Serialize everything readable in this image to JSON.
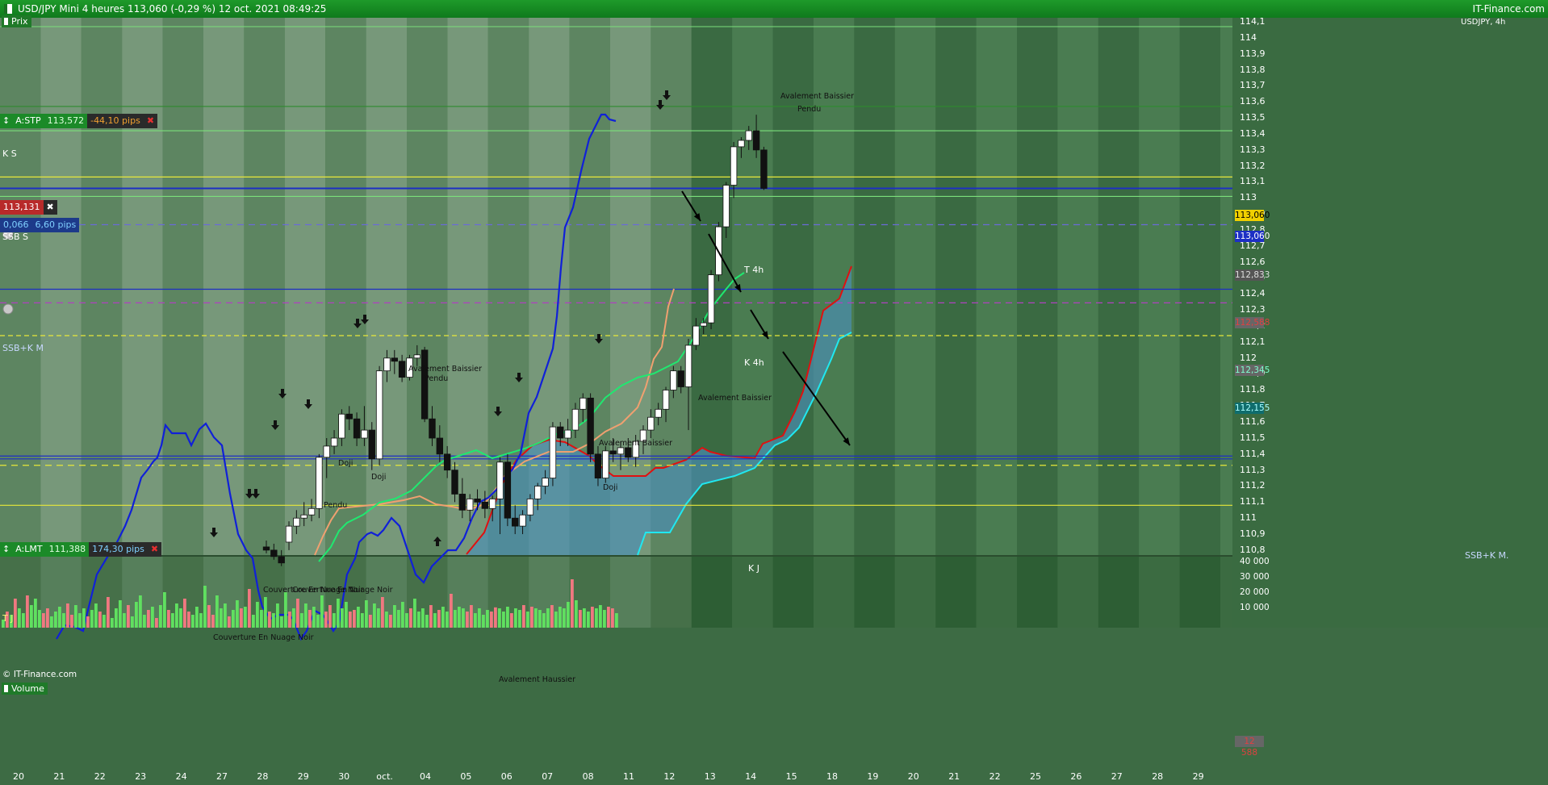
{
  "window": {
    "title": "USD/JPY Mini 4 heures 113,060 (-0,29 %) 12 oct. 2021 08:49:25",
    "brand": "IT-Finance.com",
    "symbol_tag": "USDJPY, 4h",
    "copyright": "© IT-Finance.com"
  },
  "panels": {
    "price": "Prix",
    "volume": "Volume"
  },
  "orders": {
    "stop": {
      "name": "A:STP",
      "price": "113,572",
      "pips": "-44,10 pips"
    },
    "current": {
      "price": "113,131",
      "spread": "0,066",
      "pips": "6,60 pips"
    },
    "limit": {
      "name": "A:LMT",
      "price": "111,388",
      "pips": "174,30 pips"
    }
  },
  "level_labels": {
    "ks": "K S",
    "ssbs": "SSB S",
    "ssbkm": "SSB+K M",
    "ssbkm_right": "SSB+K M.",
    "tj": "T J",
    "t4h": "T 4h",
    "k4h": "K 4h",
    "kj": "K J"
  },
  "patterns": {
    "p1": "Avalement Baissier",
    "p1b": "Pendu",
    "p2": "Avalement Baissier",
    "p2b": "Pendu",
    "p3": "Avalement Baissier",
    "p4": "Avalement Baissier",
    "p5": "Doji",
    "p6": "Doji",
    "p7": "Pendu",
    "p8": "Doji",
    "p9": "Couverture En Nuage Noir",
    "p10": "Couverture En Nuage Noir",
    "p11": "Couverture En Nuage Noir",
    "p12": "Avalement Haussier"
  },
  "price_axis": {
    "ticks": [
      "114,1",
      "114",
      "113,9",
      "113,8",
      "113,7",
      "113,6",
      "113,5",
      "113,4",
      "113,3",
      "113,2",
      "113,1",
      "113",
      "112,9",
      "112,8",
      "112,7",
      "112,6",
      "112,5",
      "112,4",
      "112,3",
      "112,2",
      "112,1",
      "112",
      "111,9",
      "111,8",
      "111,7",
      "111,6",
      "111,5",
      "111,4",
      "111,3",
      "111,2",
      "111,1",
      "111",
      "110,9",
      "110,8"
    ],
    "tags": {
      "last": "113,060",
      "bid": "113,060",
      "t4h": "112,833",
      "red": "112,588",
      "purple": "112,345",
      "cyan": "112,155"
    }
  },
  "volume_axis": {
    "ticks": [
      "40 000",
      "30 000",
      "20 000",
      "10 000"
    ],
    "tag": "12 588"
  },
  "x_axis": {
    "labels": [
      "20",
      "21",
      "22",
      "23",
      "24",
      "27",
      "28",
      "29",
      "30",
      "oct.",
      "04",
      "05",
      "06",
      "07",
      "08",
      "11",
      "12",
      "13",
      "14",
      "15",
      "18",
      "19",
      "20",
      "21",
      "22",
      "25",
      "26",
      "27",
      "28",
      "29"
    ]
  },
  "chart_data": {
    "type": "candlestick",
    "title": "USD/JPY Mini 4 heures",
    "timeframe": "4h",
    "last_price": 113.06,
    "change_pct": -0.29,
    "ylim": [
      110.75,
      114.15
    ],
    "horizontal_levels": [
      {
        "label": "K S",
        "value": 113.42,
        "color": "#7be07b"
      },
      {
        "label": "SSB S",
        "value": 113.01,
        "color": "#7be07b"
      },
      {
        "label": "SSB+K M",
        "value": 112.43,
        "color": "#1d2fc4"
      },
      {
        "label": "SSB+K M.",
        "value": 111.37,
        "color": "#1d2fc4"
      },
      {
        "label": "T J",
        "value": 111.08,
        "color": "#e8e83a"
      },
      {
        "label": "A:STP",
        "value": 113.572,
        "color": "#2e8b2e"
      },
      {
        "label": "A:LMT",
        "value": 111.388,
        "color": "#1d2fc4"
      },
      {
        "label": "",
        "value": 113.131,
        "color": "#e8e83a"
      },
      {
        "label": "",
        "value": 113.06,
        "color": "#1d2fc4"
      },
      {
        "label": "",
        "value": 112.833,
        "color": "#6a6ad8"
      },
      {
        "label": "",
        "value": 112.345,
        "color": "#b040c0"
      },
      {
        "label": "",
        "value": 112.14,
        "color": "#e8e83a"
      },
      {
        "label": "",
        "value": 111.33,
        "color": "#e8e83a"
      }
    ],
    "candles": [
      [
        110.82,
        110.86,
        110.78,
        110.8
      ],
      [
        110.8,
        110.84,
        110.74,
        110.76
      ],
      [
        110.76,
        110.8,
        110.7,
        110.72
      ],
      [
        110.85,
        110.98,
        110.8,
        110.95
      ],
      [
        110.95,
        111.05,
        110.9,
        111.0
      ],
      [
        111.0,
        111.1,
        110.95,
        111.02
      ],
      [
        111.02,
        111.12,
        110.98,
        111.06
      ],
      [
        111.06,
        111.4,
        111.0,
        111.38
      ],
      [
        111.38,
        111.5,
        111.25,
        111.45
      ],
      [
        111.45,
        111.55,
        111.4,
        111.5
      ],
      [
        111.5,
        111.68,
        111.45,
        111.65
      ],
      [
        111.65,
        111.7,
        111.55,
        111.62
      ],
      [
        111.62,
        111.66,
        111.45,
        111.5
      ],
      [
        111.5,
        111.7,
        111.45,
        111.55
      ],
      [
        111.55,
        111.6,
        111.3,
        111.37
      ],
      [
        111.37,
        111.95,
        111.33,
        111.92
      ],
      [
        111.92,
        112.05,
        111.85,
        112.0
      ],
      [
        112.0,
        112.05,
        111.9,
        111.98
      ],
      [
        111.98,
        112.02,
        111.85,
        111.88
      ],
      [
        111.88,
        112.02,
        111.86,
        112.0
      ],
      [
        112.0,
        112.08,
        111.95,
        112.02
      ],
      [
        112.05,
        112.07,
        111.6,
        111.62
      ],
      [
        111.62,
        111.7,
        111.45,
        111.5
      ],
      [
        111.5,
        111.58,
        111.35,
        111.4
      ],
      [
        111.4,
        111.45,
        111.25,
        111.3
      ],
      [
        111.3,
        111.35,
        111.1,
        111.15
      ],
      [
        111.15,
        111.25,
        111.0,
        111.05
      ],
      [
        111.05,
        111.15,
        110.98,
        111.12
      ],
      [
        111.12,
        111.18,
        111.05,
        111.1
      ],
      [
        111.1,
        111.17,
        111.0,
        111.06
      ],
      [
        111.06,
        111.14,
        110.98,
        111.12
      ],
      [
        111.12,
        111.38,
        110.9,
        111.35
      ],
      [
        111.35,
        111.4,
        110.95,
        111.0
      ],
      [
        111.0,
        111.08,
        110.9,
        110.95
      ],
      [
        110.95,
        111.05,
        110.9,
        111.02
      ],
      [
        111.02,
        111.15,
        110.98,
        111.12
      ],
      [
        111.12,
        111.22,
        111.05,
        111.2
      ],
      [
        111.2,
        111.3,
        111.15,
        111.25
      ],
      [
        111.25,
        111.6,
        111.2,
        111.57
      ],
      [
        111.57,
        111.6,
        111.45,
        111.5
      ],
      [
        111.5,
        111.62,
        111.45,
        111.55
      ],
      [
        111.55,
        111.72,
        111.5,
        111.68
      ],
      [
        111.68,
        111.78,
        111.6,
        111.75
      ],
      [
        111.75,
        111.78,
        111.35,
        111.4
      ],
      [
        111.4,
        111.45,
        111.2,
        111.25
      ],
      [
        111.25,
        111.45,
        111.22,
        111.42
      ],
      [
        111.42,
        111.5,
        111.35,
        111.4
      ],
      [
        111.4,
        111.48,
        111.3,
        111.44
      ],
      [
        111.44,
        111.5,
        111.35,
        111.38
      ],
      [
        111.38,
        111.52,
        111.32,
        111.48
      ],
      [
        111.48,
        111.58,
        111.4,
        111.55
      ],
      [
        111.55,
        111.68,
        111.5,
        111.63
      ],
      [
        111.63,
        111.72,
        111.58,
        111.68
      ],
      [
        111.68,
        111.82,
        111.6,
        111.8
      ],
      [
        111.8,
        111.95,
        111.75,
        111.92
      ],
      [
        111.92,
        111.95,
        111.78,
        111.82
      ],
      [
        111.82,
        112.12,
        111.55,
        112.08
      ],
      [
        112.08,
        112.25,
        112.05,
        112.2
      ],
      [
        112.2,
        112.25,
        112.15,
        112.22
      ],
      [
        112.22,
        112.55,
        112.18,
        112.52
      ],
      [
        112.52,
        112.85,
        112.48,
        112.82
      ],
      [
        112.82,
        113.1,
        112.75,
        113.08
      ],
      [
        113.08,
        113.35,
        113.0,
        113.32
      ],
      [
        113.32,
        113.38,
        113.25,
        113.36
      ],
      [
        113.36,
        113.45,
        113.3,
        113.42
      ],
      [
        113.42,
        113.52,
        113.25,
        113.3
      ],
      [
        113.3,
        113.32,
        113.05,
        113.06
      ]
    ],
    "volume": [
      [
        5000,
        10000,
        8000,
        18000,
        12000,
        9000,
        20000,
        14000
      ],
      [
        18000,
        11000,
        9000,
        12000,
        7000,
        10000,
        13000,
        9000,
        15000,
        8000
      ],
      [
        14000,
        9000,
        12000,
        7000,
        11000,
        15000,
        10000,
        8000,
        19000,
        6000
      ],
      [
        12000,
        17000,
        9000,
        14000,
        7000,
        16000,
        20000,
        8000,
        11000,
        13000,
        6000
      ],
      [
        14000,
        22000,
        11000,
        9000,
        15000,
        12000,
        18000,
        10000,
        8000,
        13000
      ],
      [
        9000,
        26000,
        14000,
        8000,
        20000,
        12000,
        15000,
        7000,
        11000,
        17000
      ],
      [
        12000,
        13000,
        24000,
        8000,
        16000,
        11000,
        19000,
        10000,
        9000,
        15000,
        7000
      ],
      [
        22000,
        10000,
        12000,
        18000,
        9000,
        15000,
        11000,
        13000,
        8000,
        20000,
        10000
      ],
      [
        14000,
        9000,
        18000,
        12000,
        16000,
        10000,
        11000,
        13000,
        9000,
        17000,
        8000
      ],
      [
        15000,
        12000,
        19000,
        10000,
        8000,
        14000,
        11000,
        16000,
        9000,
        12000
      ],
      [
        18000,
        10000,
        12000,
        8000,
        14000,
        9000,
        11000,
        13000,
        10000,
        21000
      ],
      [
        11000,
        13000,
        12000,
        10000,
        14000,
        9000,
        12000,
        8000,
        11000,
        10000,
        12588
      ],
      [
        12000,
        10000,
        13000,
        9000,
        12000,
        11000,
        14000,
        10000,
        13000,
        12000,
        11000,
        9000,
        12000,
        14000,
        10000,
        13000,
        12000,
        16000,
        30000,
        17000,
        11000,
        12000,
        10000,
        13000,
        12000,
        14000,
        11000,
        13000,
        12000,
        9000
      ]
    ],
    "x_categories": [
      "20",
      "21",
      "22",
      "23",
      "24",
      "27",
      "28",
      "29",
      "30",
      "oct.",
      "04",
      "05",
      "06",
      "07",
      "08",
      "11",
      "12",
      "13",
      "14",
      "15",
      "18",
      "19",
      "20",
      "21",
      "22",
      "25",
      "26",
      "27",
      "28",
      "29"
    ]
  }
}
